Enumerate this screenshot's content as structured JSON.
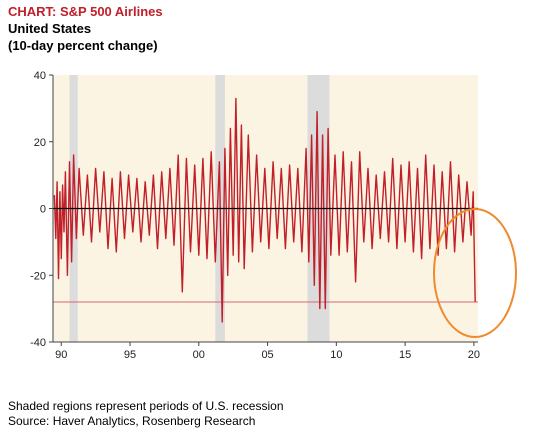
{
  "header": {
    "title": "CHART: S&P 500 Airlines",
    "subtitle_line1": "United States",
    "subtitle_line2": "(10-day percent change)"
  },
  "footer": {
    "note": "Shaded regions represent periods of U.S. recession",
    "source": "Source: Haver Analytics, Rosenberg Research"
  },
  "colors": {
    "series": "#c0202a",
    "plot_background": "#fcf4e3",
    "recession_shade": "#dcdcdc",
    "highlight_circle": "#ef8a2d",
    "reference_line": "#d46a70"
  },
  "chart_data": {
    "type": "line",
    "xlim": [
      1989.4,
      2020.3
    ],
    "ylim": [
      -40,
      40
    ],
    "x_ticks": [
      1990,
      1995,
      2000,
      2005,
      2010,
      2015,
      2020
    ],
    "x_tick_labels": [
      "90",
      "95",
      "00",
      "05",
      "10",
      "15",
      "20"
    ],
    "y_ticks": [
      40,
      20,
      0,
      -20,
      -40
    ],
    "y_tick_labels": [
      "40",
      "20",
      "0",
      "-20",
      "-40"
    ],
    "grid": false,
    "legend": "none",
    "recessions": [
      [
        1990.6,
        1991.2
      ],
      [
        2001.2,
        2001.9
      ],
      [
        2007.9,
        2009.5
      ]
    ],
    "reference_line_y": -28,
    "annotation": "orange circle highlighting the 2020 plunge",
    "series": [
      {
        "points": [
          [
            1989.5,
            4
          ],
          [
            1989.6,
            -9
          ],
          [
            1989.7,
            8
          ],
          [
            1989.8,
            -21
          ],
          [
            1989.9,
            5
          ],
          [
            1990.0,
            -15
          ],
          [
            1990.1,
            7
          ],
          [
            1990.2,
            -7
          ],
          [
            1990.3,
            11
          ],
          [
            1990.45,
            -20
          ],
          [
            1990.6,
            14
          ],
          [
            1990.75,
            -16
          ],
          [
            1990.9,
            16
          ],
          [
            1991.1,
            -9
          ],
          [
            1991.3,
            12
          ],
          [
            1991.6,
            -8
          ],
          [
            1991.9,
            10
          ],
          [
            1992.2,
            -10
          ],
          [
            1992.5,
            12
          ],
          [
            1992.8,
            -7
          ],
          [
            1993.1,
            11
          ],
          [
            1993.4,
            -12
          ],
          [
            1993.7,
            9
          ],
          [
            1994.0,
            -13
          ],
          [
            1994.3,
            11
          ],
          [
            1994.6,
            -9
          ],
          [
            1994.9,
            10
          ],
          [
            1995.2,
            -7
          ],
          [
            1995.5,
            9
          ],
          [
            1995.8,
            -10
          ],
          [
            1996.1,
            8
          ],
          [
            1996.4,
            -8
          ],
          [
            1996.7,
            10
          ],
          [
            1997.0,
            -12
          ],
          [
            1997.3,
            11
          ],
          [
            1997.6,
            -9
          ],
          [
            1997.9,
            12
          ],
          [
            1998.2,
            -11
          ],
          [
            1998.5,
            16
          ],
          [
            1998.8,
            -25
          ],
          [
            1999.1,
            15
          ],
          [
            1999.4,
            -13
          ],
          [
            1999.7,
            13
          ],
          [
            2000.0,
            -14
          ],
          [
            2000.3,
            15
          ],
          [
            2000.6,
            -15
          ],
          [
            2000.9,
            17
          ],
          [
            2001.2,
            -16
          ],
          [
            2001.5,
            14
          ],
          [
            2001.7,
            -34
          ],
          [
            2001.9,
            18
          ],
          [
            2002.1,
            -20
          ],
          [
            2002.3,
            24
          ],
          [
            2002.5,
            -14
          ],
          [
            2002.7,
            33
          ],
          [
            2002.9,
            -16
          ],
          [
            2003.1,
            25
          ],
          [
            2003.3,
            -18
          ],
          [
            2003.6,
            22
          ],
          [
            2003.9,
            -13
          ],
          [
            2004.2,
            16
          ],
          [
            2004.5,
            -10
          ],
          [
            2004.8,
            12
          ],
          [
            2005.1,
            -12
          ],
          [
            2005.4,
            14
          ],
          [
            2005.7,
            -9
          ],
          [
            2006.0,
            12
          ],
          [
            2006.3,
            -12
          ],
          [
            2006.6,
            13
          ],
          [
            2006.9,
            -10
          ],
          [
            2007.2,
            12
          ],
          [
            2007.5,
            -13
          ],
          [
            2007.8,
            18
          ],
          [
            2008.0,
            -16
          ],
          [
            2008.2,
            22
          ],
          [
            2008.4,
            -23
          ],
          [
            2008.6,
            29
          ],
          [
            2008.8,
            -30
          ],
          [
            2009.0,
            22
          ],
          [
            2009.2,
            -30
          ],
          [
            2009.4,
            24
          ],
          [
            2009.6,
            -14
          ],
          [
            2009.9,
            16
          ],
          [
            2010.2,
            -14
          ],
          [
            2010.5,
            17
          ],
          [
            2010.8,
            -13
          ],
          [
            2011.1,
            14
          ],
          [
            2011.4,
            -22
          ],
          [
            2011.7,
            17
          ],
          [
            2012.0,
            -10
          ],
          [
            2012.3,
            12
          ],
          [
            2012.6,
            -12
          ],
          [
            2012.9,
            10
          ],
          [
            2013.2,
            -9
          ],
          [
            2013.5,
            11
          ],
          [
            2013.8,
            -10
          ],
          [
            2014.1,
            15
          ],
          [
            2014.4,
            -12
          ],
          [
            2014.7,
            13
          ],
          [
            2015.0,
            -10
          ],
          [
            2015.3,
            14
          ],
          [
            2015.6,
            -13
          ],
          [
            2015.9,
            12
          ],
          [
            2016.2,
            -15
          ],
          [
            2016.5,
            16
          ],
          [
            2016.8,
            -12
          ],
          [
            2017.1,
            13
          ],
          [
            2017.4,
            -14
          ],
          [
            2017.7,
            11
          ],
          [
            2018.0,
            -12
          ],
          [
            2018.3,
            14
          ],
          [
            2018.6,
            -13
          ],
          [
            2018.9,
            10
          ],
          [
            2019.2,
            -10
          ],
          [
            2019.5,
            8
          ],
          [
            2019.8,
            -8
          ],
          [
            2019.95,
            5
          ],
          [
            2020.1,
            -28
          ]
        ]
      }
    ]
  }
}
